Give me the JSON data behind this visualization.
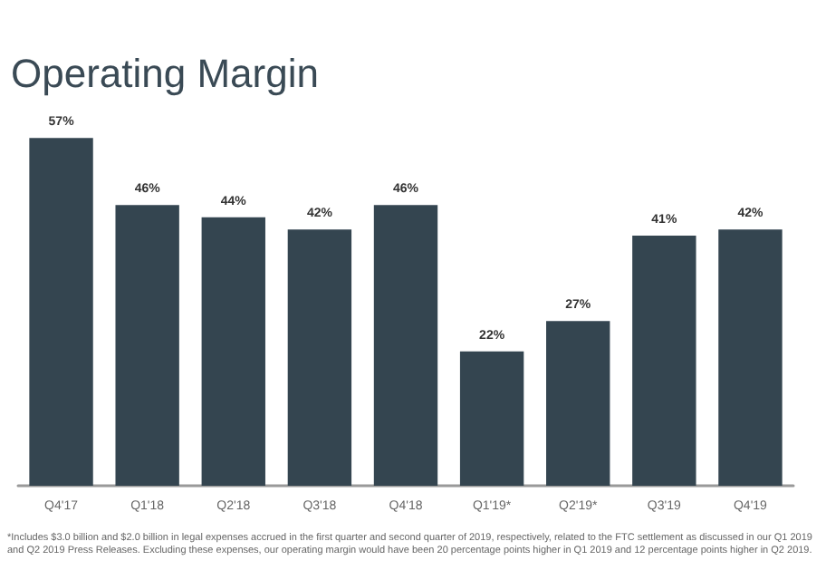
{
  "chart_data": {
    "type": "bar",
    "title": "Operating Margin",
    "categories": [
      "Q4'17",
      "Q1'18",
      "Q2'18",
      "Q3'18",
      "Q4'18",
      "Q1'19*",
      "Q2'19*",
      "Q3'19",
      "Q4'19"
    ],
    "values": [
      57,
      46,
      44,
      42,
      46,
      22,
      27,
      41,
      42
    ],
    "value_labels": [
      "57%",
      "46%",
      "44%",
      "42%",
      "46%",
      "22%",
      "27%",
      "41%",
      "42%"
    ],
    "color": "#344550",
    "tick_labels": "x",
    "annotations": [
      "*Includes $3.0 billion and $2.0 billion in legal expenses accrued in the first quarter and second quarter of 2019, respectively, related to the FTC settlement as discussed in our Q1 2019 and Q2 2019 Press Releases. Excluding these expenses, our operating margin would have been 20 percentage points higher in Q1 2019 and 12 percentage points higher in Q2 2019."
    ]
  }
}
